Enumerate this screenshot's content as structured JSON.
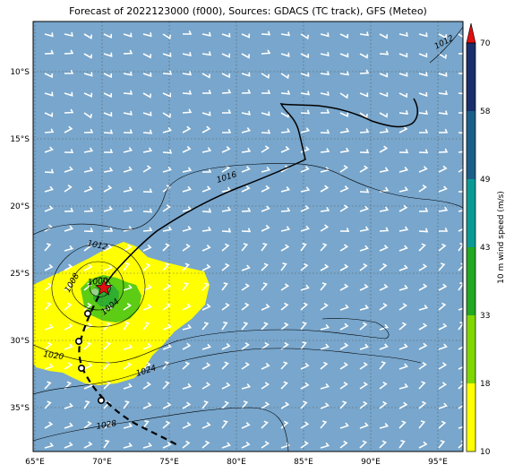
{
  "title": "Forecast of 2022123000 (f000), Sources: GDACS (TC track), GFS (Meteo)",
  "map": {
    "lon_range": [
      65,
      97
    ],
    "lat_range": [
      -38.2,
      -6.8
    ],
    "lon_ticks": [
      "65°E",
      "70°E",
      "75°E",
      "80°E",
      "85°E",
      "90°E",
      "95°E"
    ],
    "lat_ticks": [
      "10°S",
      "15°S",
      "20°S",
      "25°S",
      "30°S",
      "35°S"
    ],
    "ocean_color": "#78a6cc",
    "contour_labels": [
      "1012",
      "1016",
      "1012",
      "1008",
      "1000",
      "1004",
      "1020",
      "1024",
      "1028"
    ],
    "storm_symbol": "red-star-icon"
  },
  "colorbar": {
    "label": "10 m wind speed (m/s)",
    "levels": [
      "10",
      "18",
      "33",
      "43",
      "49",
      "58",
      "70"
    ],
    "colors": [
      "#ffff00",
      "#7fd600",
      "#22a822",
      "#0a9a96",
      "#1b5f88",
      "#1a2f6a"
    ],
    "extend_color": "#e01010"
  }
}
